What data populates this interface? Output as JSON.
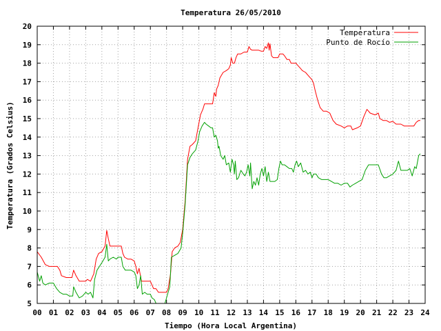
{
  "chart_data": {
    "type": "line",
    "title": "Temperatura 26/05/2010",
    "xlabel": "Tiempo (Hora Local Argentina)",
    "ylabel": "Temperatura (Grados Celsius)",
    "xlim": [
      0,
      24
    ],
    "ylim": [
      5,
      20
    ],
    "x_ticks": [
      "00",
      "01",
      "02",
      "03",
      "04",
      "05",
      "06",
      "07",
      "08",
      "09",
      "10",
      "11",
      "12",
      "13",
      "14",
      "15",
      "16",
      "17",
      "18",
      "19",
      "20",
      "21",
      "22",
      "23",
      "24"
    ],
    "y_ticks": [
      "5",
      "6",
      "7",
      "8",
      "9",
      "10",
      "11",
      "12",
      "13",
      "14",
      "15",
      "16",
      "17",
      "18",
      "19",
      "20"
    ],
    "grid": true,
    "legend_position": "top-right",
    "series": [
      {
        "name": "Temperatura",
        "color": "#ff0000",
        "points": [
          [
            0.0,
            7.8
          ],
          [
            0.25,
            7.5
          ],
          [
            0.5,
            7.1
          ],
          [
            0.75,
            7.0
          ],
          [
            1.0,
            7.0
          ],
          [
            1.25,
            7.0
          ],
          [
            1.4,
            6.8
          ],
          [
            1.5,
            6.5
          ],
          [
            1.8,
            6.4
          ],
          [
            2.0,
            6.4
          ],
          [
            2.15,
            6.4
          ],
          [
            2.25,
            6.8
          ],
          [
            2.4,
            6.5
          ],
          [
            2.6,
            6.2
          ],
          [
            2.8,
            6.2
          ],
          [
            3.0,
            6.2
          ],
          [
            3.1,
            6.3
          ],
          [
            3.3,
            6.2
          ],
          [
            3.5,
            6.6
          ],
          [
            3.65,
            7.4
          ],
          [
            3.8,
            7.7
          ],
          [
            4.0,
            7.8
          ],
          [
            4.2,
            8.1
          ],
          [
            4.3,
            8.95
          ],
          [
            4.4,
            8.5
          ],
          [
            4.5,
            8.1
          ],
          [
            4.75,
            8.1
          ],
          [
            5.0,
            8.1
          ],
          [
            5.2,
            8.1
          ],
          [
            5.3,
            7.7
          ],
          [
            5.4,
            7.5
          ],
          [
            5.6,
            7.4
          ],
          [
            5.8,
            7.4
          ],
          [
            6.0,
            7.3
          ],
          [
            6.1,
            7.0
          ],
          [
            6.2,
            6.6
          ],
          [
            6.3,
            6.9
          ],
          [
            6.45,
            6.2
          ],
          [
            6.6,
            6.2
          ],
          [
            6.9,
            6.2
          ],
          [
            7.0,
            6.2
          ],
          [
            7.2,
            5.8
          ],
          [
            7.35,
            5.8
          ],
          [
            7.5,
            5.6
          ],
          [
            7.75,
            5.6
          ],
          [
            8.0,
            5.6
          ],
          [
            8.1,
            5.8
          ],
          [
            8.25,
            6.6
          ],
          [
            8.35,
            7.8
          ],
          [
            8.5,
            8.0
          ],
          [
            8.7,
            8.1
          ],
          [
            8.85,
            8.3
          ],
          [
            9.0,
            9.0
          ],
          [
            9.15,
            10.5
          ],
          [
            9.3,
            12.8
          ],
          [
            9.45,
            13.5
          ],
          [
            9.6,
            13.6
          ],
          [
            9.8,
            13.8
          ],
          [
            9.95,
            14.5
          ],
          [
            10.1,
            15.2
          ],
          [
            10.25,
            15.5
          ],
          [
            10.35,
            15.8
          ],
          [
            10.5,
            15.8
          ],
          [
            10.7,
            15.8
          ],
          [
            10.85,
            15.8
          ],
          [
            10.95,
            16.4
          ],
          [
            11.05,
            16.2
          ],
          [
            11.1,
            16.6
          ],
          [
            11.2,
            16.8
          ],
          [
            11.3,
            17.2
          ],
          [
            11.5,
            17.5
          ],
          [
            11.7,
            17.6
          ],
          [
            11.85,
            17.7
          ],
          [
            11.95,
            17.9
          ],
          [
            12.0,
            18.3
          ],
          [
            12.1,
            18.0
          ],
          [
            12.2,
            18.0
          ],
          [
            12.3,
            18.3
          ],
          [
            12.4,
            18.5
          ],
          [
            12.6,
            18.5
          ],
          [
            12.8,
            18.6
          ],
          [
            13.0,
            18.6
          ],
          [
            13.1,
            18.9
          ],
          [
            13.2,
            18.75
          ],
          [
            13.3,
            18.7
          ],
          [
            13.5,
            18.7
          ],
          [
            13.7,
            18.7
          ],
          [
            13.85,
            18.65
          ],
          [
            14.0,
            18.65
          ],
          [
            14.1,
            18.9
          ],
          [
            14.2,
            18.8
          ],
          [
            14.3,
            19.1
          ],
          [
            14.35,
            18.7
          ],
          [
            14.4,
            19.05
          ],
          [
            14.5,
            18.4
          ],
          [
            14.6,
            18.3
          ],
          [
            14.8,
            18.3
          ],
          [
            14.9,
            18.3
          ],
          [
            15.0,
            18.5
          ],
          [
            15.2,
            18.5
          ],
          [
            15.3,
            18.4
          ],
          [
            15.45,
            18.2
          ],
          [
            15.6,
            18.2
          ],
          [
            15.7,
            18.0
          ],
          [
            15.9,
            18.0
          ],
          [
            16.0,
            18.0
          ],
          [
            16.1,
            17.9
          ],
          [
            16.3,
            17.7
          ],
          [
            16.4,
            17.6
          ],
          [
            16.6,
            17.5
          ],
          [
            16.8,
            17.3
          ],
          [
            17.0,
            17.1
          ],
          [
            17.1,
            16.9
          ],
          [
            17.2,
            16.5
          ],
          [
            17.35,
            16.0
          ],
          [
            17.5,
            15.6
          ],
          [
            17.7,
            15.4
          ],
          [
            17.9,
            15.4
          ],
          [
            18.1,
            15.3
          ],
          [
            18.3,
            14.9
          ],
          [
            18.5,
            14.7
          ],
          [
            18.8,
            14.6
          ],
          [
            19.0,
            14.5
          ],
          [
            19.2,
            14.6
          ],
          [
            19.4,
            14.6
          ],
          [
            19.5,
            14.4
          ],
          [
            19.8,
            14.5
          ],
          [
            20.0,
            14.6
          ],
          [
            20.2,
            15.1
          ],
          [
            20.4,
            15.5
          ],
          [
            20.6,
            15.3
          ],
          [
            20.9,
            15.2
          ],
          [
            21.1,
            15.3
          ],
          [
            21.2,
            15.0
          ],
          [
            21.4,
            14.9
          ],
          [
            21.6,
            14.9
          ],
          [
            21.8,
            14.8
          ],
          [
            22.0,
            14.85
          ],
          [
            22.2,
            14.7
          ],
          [
            22.5,
            14.7
          ],
          [
            22.7,
            14.6
          ],
          [
            23.0,
            14.6
          ],
          [
            23.3,
            14.6
          ],
          [
            23.45,
            14.8
          ],
          [
            23.6,
            14.9
          ],
          [
            23.7,
            14.9
          ]
        ]
      },
      {
        "name": "Punto de Rocío",
        "color": "#00a000",
        "points": [
          [
            0.0,
            6.7
          ],
          [
            0.15,
            6.2
          ],
          [
            0.25,
            6.5
          ],
          [
            0.35,
            6.1
          ],
          [
            0.5,
            6.0
          ],
          [
            0.75,
            6.1
          ],
          [
            1.0,
            6.1
          ],
          [
            1.2,
            5.8
          ],
          [
            1.4,
            5.6
          ],
          [
            1.6,
            5.5
          ],
          [
            1.8,
            5.5
          ],
          [
            2.0,
            5.4
          ],
          [
            2.2,
            5.4
          ],
          [
            2.25,
            5.9
          ],
          [
            2.3,
            5.8
          ],
          [
            2.4,
            5.6
          ],
          [
            2.6,
            5.3
          ],
          [
            2.8,
            5.4
          ],
          [
            3.0,
            5.6
          ],
          [
            3.15,
            5.5
          ],
          [
            3.3,
            5.6
          ],
          [
            3.45,
            5.3
          ],
          [
            3.55,
            6.3
          ],
          [
            3.7,
            6.8
          ],
          [
            3.85,
            7.0
          ],
          [
            4.0,
            7.2
          ],
          [
            4.2,
            7.5
          ],
          [
            4.3,
            8.2
          ],
          [
            4.4,
            7.3
          ],
          [
            4.5,
            7.4
          ],
          [
            4.7,
            7.5
          ],
          [
            4.9,
            7.4
          ],
          [
            5.0,
            7.5
          ],
          [
            5.2,
            7.5
          ],
          [
            5.3,
            7.0
          ],
          [
            5.45,
            6.8
          ],
          [
            5.6,
            6.8
          ],
          [
            5.8,
            6.8
          ],
          [
            6.0,
            6.7
          ],
          [
            6.1,
            6.5
          ],
          [
            6.2,
            5.8
          ],
          [
            6.3,
            6.0
          ],
          [
            6.4,
            6.5
          ],
          [
            6.5,
            5.5
          ],
          [
            6.65,
            5.6
          ],
          [
            6.8,
            5.5
          ],
          [
            7.0,
            5.5
          ],
          [
            7.1,
            5.3
          ],
          [
            7.25,
            5.2
          ],
          [
            7.4,
            4.9
          ],
          [
            7.6,
            4.9
          ],
          [
            7.8,
            4.9
          ],
          [
            7.9,
            5.0
          ],
          [
            8.0,
            5.3
          ],
          [
            8.1,
            5.6
          ],
          [
            8.2,
            5.9
          ],
          [
            8.3,
            7.5
          ],
          [
            8.5,
            7.6
          ],
          [
            8.7,
            7.7
          ],
          [
            8.9,
            8.0
          ],
          [
            9.0,
            8.8
          ],
          [
            9.15,
            10.3
          ],
          [
            9.3,
            12.5
          ],
          [
            9.45,
            12.9
          ],
          [
            9.6,
            13.1
          ],
          [
            9.8,
            13.3
          ],
          [
            9.95,
            13.8
          ],
          [
            10.05,
            14.3
          ],
          [
            10.2,
            14.6
          ],
          [
            10.35,
            14.8
          ],
          [
            10.45,
            14.7
          ],
          [
            10.6,
            14.6
          ],
          [
            10.75,
            14.5
          ],
          [
            10.85,
            14.5
          ],
          [
            10.95,
            14.0
          ],
          [
            11.05,
            14.1
          ],
          [
            11.15,
            13.8
          ],
          [
            11.2,
            13.4
          ],
          [
            11.25,
            13.5
          ],
          [
            11.35,
            13.0
          ],
          [
            11.5,
            12.8
          ],
          [
            11.6,
            13.0
          ],
          [
            11.7,
            12.5
          ],
          [
            11.85,
            12.6
          ],
          [
            11.95,
            12.1
          ],
          [
            12.05,
            12.8
          ],
          [
            12.15,
            12.5
          ],
          [
            12.2,
            12.0
          ],
          [
            12.25,
            12.7
          ],
          [
            12.35,
            11.7
          ],
          [
            12.45,
            11.8
          ],
          [
            12.6,
            12.2
          ],
          [
            12.75,
            12.0
          ],
          [
            12.85,
            11.9
          ],
          [
            12.95,
            12.1
          ],
          [
            13.05,
            12.5
          ],
          [
            13.15,
            11.9
          ],
          [
            13.2,
            12.6
          ],
          [
            13.3,
            11.2
          ],
          [
            13.4,
            11.6
          ],
          [
            13.5,
            11.4
          ],
          [
            13.6,
            11.8
          ],
          [
            13.7,
            11.4
          ],
          [
            13.8,
            12.0
          ],
          [
            13.9,
            12.3
          ],
          [
            14.0,
            11.9
          ],
          [
            14.1,
            12.4
          ],
          [
            14.2,
            11.6
          ],
          [
            14.3,
            12.1
          ],
          [
            14.4,
            11.6
          ],
          [
            14.5,
            11.6
          ],
          [
            14.7,
            11.6
          ],
          [
            14.85,
            11.7
          ],
          [
            14.95,
            12.3
          ],
          [
            15.05,
            12.7
          ],
          [
            15.15,
            12.5
          ],
          [
            15.3,
            12.5
          ],
          [
            15.45,
            12.4
          ],
          [
            15.6,
            12.3
          ],
          [
            15.75,
            12.3
          ],
          [
            15.85,
            12.1
          ],
          [
            15.95,
            12.5
          ],
          [
            16.05,
            12.7
          ],
          [
            16.15,
            12.4
          ],
          [
            16.3,
            12.6
          ],
          [
            16.45,
            12.1
          ],
          [
            16.6,
            12.2
          ],
          [
            16.75,
            12.0
          ],
          [
            16.9,
            12.1
          ],
          [
            17.0,
            11.8
          ],
          [
            17.1,
            12.0
          ],
          [
            17.25,
            12.0
          ],
          [
            17.4,
            11.8
          ],
          [
            17.6,
            11.7
          ],
          [
            17.8,
            11.7
          ],
          [
            18.0,
            11.7
          ],
          [
            18.2,
            11.6
          ],
          [
            18.4,
            11.5
          ],
          [
            18.6,
            11.5
          ],
          [
            18.8,
            11.4
          ],
          [
            19.0,
            11.5
          ],
          [
            19.2,
            11.5
          ],
          [
            19.35,
            11.3
          ],
          [
            19.5,
            11.4
          ],
          [
            19.7,
            11.5
          ],
          [
            19.9,
            11.6
          ],
          [
            20.1,
            11.7
          ],
          [
            20.3,
            12.2
          ],
          [
            20.5,
            12.5
          ],
          [
            20.7,
            12.5
          ],
          [
            20.9,
            12.5
          ],
          [
            21.1,
            12.5
          ],
          [
            21.3,
            12.0
          ],
          [
            21.45,
            11.8
          ],
          [
            21.6,
            11.8
          ],
          [
            21.8,
            11.9
          ],
          [
            22.0,
            12.0
          ],
          [
            22.2,
            12.2
          ],
          [
            22.35,
            12.7
          ],
          [
            22.5,
            12.2
          ],
          [
            22.7,
            12.2
          ],
          [
            22.9,
            12.2
          ],
          [
            23.05,
            12.3
          ],
          [
            23.2,
            11.9
          ],
          [
            23.35,
            12.4
          ],
          [
            23.45,
            12.3
          ],
          [
            23.6,
            13.0
          ],
          [
            23.7,
            13.1
          ]
        ]
      }
    ]
  }
}
